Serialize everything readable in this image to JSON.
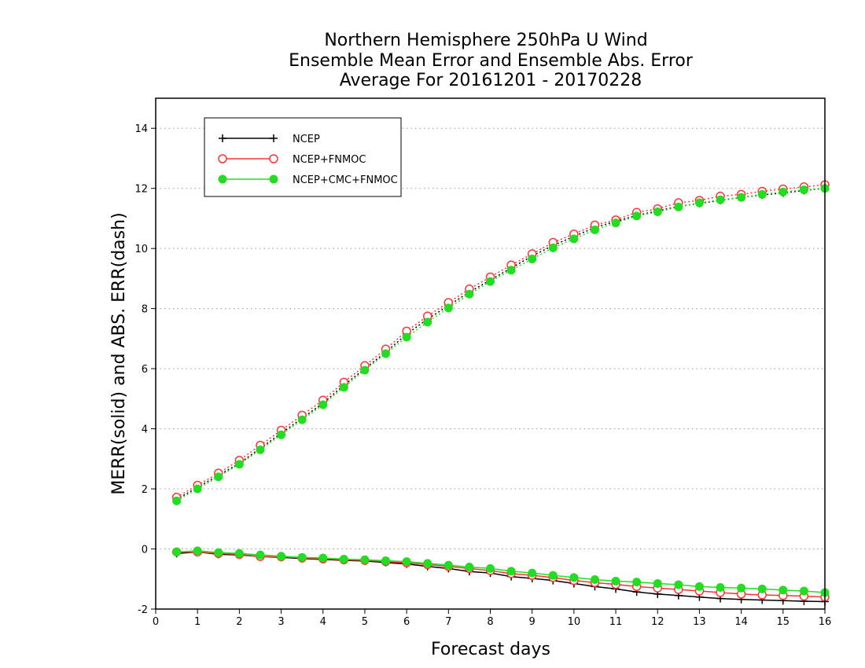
{
  "chart_data": {
    "type": "line",
    "title_lines": [
      "Northern Hemisphere 250hPa U Wind",
      "Ensemble Mean Error and Ensemble Abs. Error",
      "Average For 20161201 - 20170228"
    ],
    "xlabel": "Forecast days",
    "ylabel": "MERR(solid) and ABS. ERR(dash)",
    "xlim": [
      0,
      16
    ],
    "ylim": [
      -2,
      15
    ],
    "x_ticks": [
      "0",
      "1",
      "2",
      "3",
      "4",
      "5",
      "6",
      "7",
      "8",
      "9",
      "10",
      "11",
      "12",
      "13",
      "14",
      "15",
      "16"
    ],
    "y_ticks": [
      "-2",
      "0",
      "2",
      "4",
      "6",
      "8",
      "10",
      "12",
      "14"
    ],
    "grid": true,
    "legend_position": "top-left",
    "x": [
      0.5,
      1,
      1.5,
      2,
      2.5,
      3,
      3.5,
      4,
      4.5,
      5,
      5.5,
      6,
      6.5,
      7,
      7.5,
      8,
      8.5,
      9,
      9.5,
      10,
      10.5,
      11,
      11.5,
      12,
      12.5,
      13,
      13.5,
      14,
      14.5,
      15,
      15.5,
      16
    ],
    "series": [
      {
        "name": "NCEP",
        "color": "#000000",
        "marker": "plus",
        "merr": [
          -0.15,
          -0.1,
          -0.18,
          -0.2,
          -0.25,
          -0.28,
          -0.32,
          -0.35,
          -0.38,
          -0.4,
          -0.45,
          -0.5,
          -0.58,
          -0.65,
          -0.75,
          -0.8,
          -0.92,
          -0.98,
          -1.05,
          -1.15,
          -1.25,
          -1.33,
          -1.43,
          -1.5,
          -1.55,
          -1.6,
          -1.65,
          -1.68,
          -1.7,
          -1.72,
          -1.74,
          -1.75
        ],
        "abs_err": [
          1.65,
          2.05,
          2.45,
          2.85,
          3.35,
          3.85,
          4.35,
          4.85,
          5.45,
          6.0,
          6.55,
          7.15,
          7.65,
          8.1,
          8.55,
          8.95,
          9.35,
          9.75,
          10.1,
          10.4,
          10.7,
          10.9,
          11.1,
          11.25,
          11.4,
          11.5,
          11.6,
          11.7,
          11.78,
          11.85,
          11.93,
          12.0
        ]
      },
      {
        "name": "NCEP+FNMOC",
        "color": "#ff3333",
        "marker": "open-circle",
        "merr": [
          -0.1,
          -0.1,
          -0.15,
          -0.18,
          -0.25,
          -0.26,
          -0.3,
          -0.33,
          -0.36,
          -0.38,
          -0.42,
          -0.46,
          -0.52,
          -0.58,
          -0.65,
          -0.72,
          -0.82,
          -0.88,
          -0.95,
          -1.05,
          -1.12,
          -1.18,
          -1.25,
          -1.3,
          -1.35,
          -1.4,
          -1.45,
          -1.5,
          -1.53,
          -1.55,
          -1.57,
          -1.6
        ],
        "abs_err": [
          1.72,
          2.12,
          2.52,
          2.95,
          3.45,
          3.95,
          4.45,
          4.95,
          5.55,
          6.1,
          6.65,
          7.25,
          7.75,
          8.2,
          8.65,
          9.05,
          9.45,
          9.82,
          10.2,
          10.48,
          10.78,
          10.95,
          11.2,
          11.32,
          11.52,
          11.6,
          11.74,
          11.8,
          11.9,
          11.98,
          12.05,
          12.12
        ]
      },
      {
        "name": "NCEP+CMC+FNMOC",
        "color": "#22dd22",
        "marker": "filled-circle",
        "merr": [
          -0.1,
          -0.06,
          -0.12,
          -0.15,
          -0.2,
          -0.24,
          -0.28,
          -0.3,
          -0.34,
          -0.36,
          -0.39,
          -0.42,
          -0.48,
          -0.54,
          -0.6,
          -0.65,
          -0.74,
          -0.8,
          -0.88,
          -0.95,
          -1.02,
          -1.07,
          -1.1,
          -1.15,
          -1.19,
          -1.25,
          -1.28,
          -1.3,
          -1.33,
          -1.37,
          -1.4,
          -1.45
        ],
        "abs_err": [
          1.6,
          2.0,
          2.4,
          2.82,
          3.3,
          3.8,
          4.3,
          4.8,
          5.38,
          5.95,
          6.5,
          7.05,
          7.55,
          8.02,
          8.48,
          8.9,
          9.28,
          9.65,
          10.02,
          10.32,
          10.62,
          10.85,
          11.08,
          11.22,
          11.38,
          11.52,
          11.62,
          11.7,
          11.8,
          11.88,
          11.95,
          12.0
        ]
      }
    ]
  }
}
